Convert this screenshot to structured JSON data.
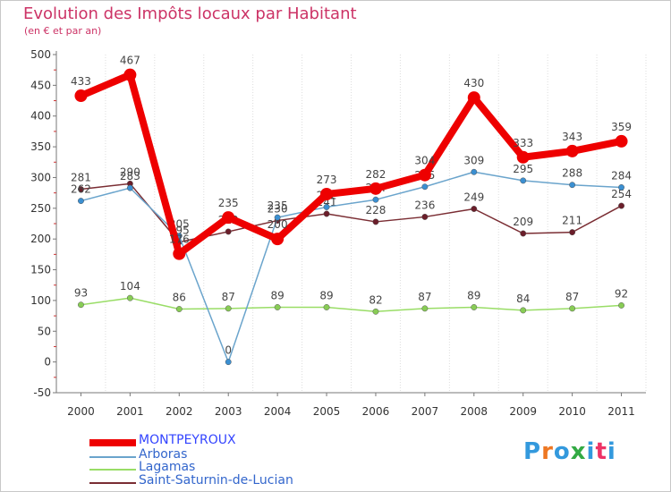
{
  "header": {
    "title": "Evolution des Impôts locaux par Habitant",
    "subtitle": "(en € et par an)"
  },
  "logo": {
    "text": "Proxiti",
    "colors": [
      "#3399dd",
      "#ee7722",
      "#33aa44",
      "#ee3366"
    ]
  },
  "chart_data": {
    "type": "line",
    "title": "Evolution des Impôts locaux par Habitant",
    "subtitle": "(en € et par an)",
    "xlabel": "",
    "ylabel": "",
    "ylim": [
      -50,
      500
    ],
    "yticks": [
      "-50",
      "0",
      "50",
      "100",
      "150",
      "200",
      "250",
      "300",
      "350",
      "400",
      "450",
      "500"
    ],
    "ytick_values": [
      -50,
      0,
      50,
      100,
      150,
      200,
      250,
      300,
      350,
      400,
      450,
      500
    ],
    "categories": [
      "2000",
      "2001",
      "2002",
      "2003",
      "2004",
      "2005",
      "2006",
      "2007",
      "2008",
      "2009",
      "2010",
      "2011"
    ],
    "grid": "vertical",
    "legend_position": "bottom-left",
    "series": [
      {
        "name": "Saint-Saturnin-de-Lucian",
        "color": "#6b1e2a",
        "line_color": "#7a2d33",
        "width": 1.5,
        "marker_r": 3.2,
        "values": [
          281,
          290,
          195,
          212,
          230,
          241,
          228,
          236,
          249,
          209,
          211,
          254
        ],
        "labels": [
          "281",
          "290",
          "195",
          "212",
          "230",
          "241",
          "228",
          "236",
          "249",
          "209",
          "211",
          "254"
        ]
      },
      {
        "name": "Lagamas",
        "color": "#88cc55",
        "line_color": "#99dd66",
        "width": 1.5,
        "marker_r": 3.2,
        "values": [
          93,
          104,
          86,
          87,
          89,
          89,
          82,
          87,
          89,
          84,
          87,
          92
        ],
        "labels": [
          "93",
          "104",
          "86",
          "87",
          "89",
          "89",
          "82",
          "87",
          "89",
          "84",
          "87",
          "92"
        ]
      },
      {
        "name": "Arboras",
        "color": "#3b8fd1",
        "line_color": "#6aa4cc",
        "width": 1.5,
        "marker_r": 3.2,
        "values": [
          262,
          283,
          205,
          0,
          235,
          252,
          264,
          285,
          309,
          295,
          288,
          284
        ],
        "labels": [
          "262",
          "283",
          "205",
          "0",
          "235",
          "252",
          "264",
          "285",
          "309",
          "295",
          "288",
          "284"
        ]
      },
      {
        "name": "MONTPEYROUX",
        "color": "#ee0000",
        "line_color": "#ee0000",
        "width": 8,
        "marker_r": 7,
        "values": [
          433,
          467,
          176,
          235,
          200,
          273,
          282,
          304,
          430,
          333,
          343,
          359
        ],
        "labels": [
          "433",
          "467",
          "176",
          "235",
          "200",
          "273",
          "282",
          "304",
          "430",
          "333",
          "343",
          "359"
        ]
      }
    ],
    "legend": [
      "MONTPEYROUX",
      "Arboras",
      "Lagamas",
      "Saint-Saturnin-de-Lucian"
    ]
  },
  "legend_colors": {
    "MONTPEYROUX": "#3344ff",
    "Arboras": "#3366cc",
    "Lagamas": "#3366cc",
    "Saint-Saturnin-de-Lucian": "#3366cc"
  }
}
